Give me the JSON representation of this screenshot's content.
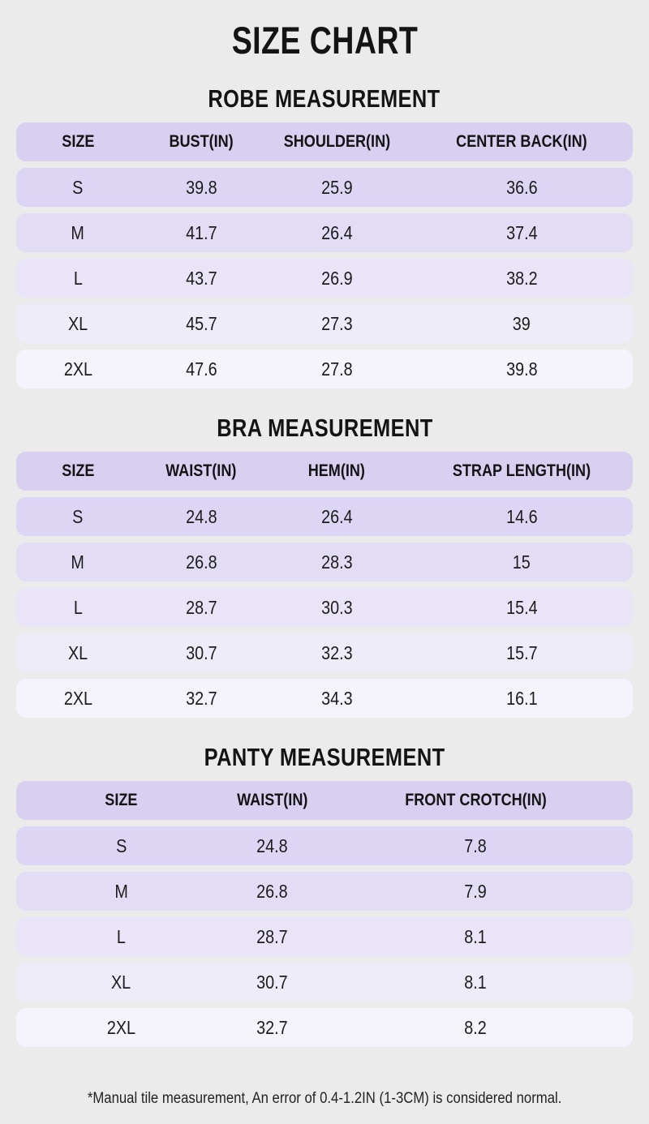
{
  "page": {
    "title": "SIZE CHART",
    "footnote": "*Manual tile measurement, An error of 0.4-1.2IN (1-3CM) is considered normal."
  },
  "colors": {
    "background": "#ebebeb",
    "header_row": "#d8cff1",
    "row_gradient": [
      "#dcd5f3",
      "#e2dcf5",
      "#e9e4f7",
      "#efecf9",
      "#f5f3fb"
    ],
    "text": "#1c1c1c"
  },
  "tables": [
    {
      "title": "ROBE MEASUREMENT",
      "headers": [
        "SIZE",
        "BUST(IN)",
        "SHOULDER(IN)",
        "CENTER BACK(IN)"
      ],
      "rows": [
        [
          "S",
          "39.8",
          "25.9",
          "36.6"
        ],
        [
          "M",
          "41.7",
          "26.4",
          "37.4"
        ],
        [
          "L",
          "43.7",
          "26.9",
          "38.2"
        ],
        [
          "XL",
          "45.7",
          "27.3",
          "39"
        ],
        [
          "2XL",
          "47.6",
          "27.8",
          "39.8"
        ]
      ]
    },
    {
      "title": "BRA MEASUREMENT",
      "headers": [
        "SIZE",
        "WAIST(IN)",
        "HEM(IN)",
        "STRAP LENGTH(IN)"
      ],
      "rows": [
        [
          "S",
          "24.8",
          "26.4",
          "14.6"
        ],
        [
          "M",
          "26.8",
          "28.3",
          "15"
        ],
        [
          "L",
          "28.7",
          "30.3",
          "15.4"
        ],
        [
          "XL",
          "30.7",
          "32.3",
          "15.7"
        ],
        [
          "2XL",
          "32.7",
          "34.3",
          "16.1"
        ]
      ]
    },
    {
      "title": "PANTY MEASUREMENT",
      "headers": [
        "SIZE",
        "WAIST(IN)",
        "FRONT CROTCH(IN)"
      ],
      "rows": [
        [
          "S",
          "24.8",
          "7.8"
        ],
        [
          "M",
          "26.8",
          "7.9"
        ],
        [
          "L",
          "28.7",
          "8.1"
        ],
        [
          "XL",
          "30.7",
          "8.1"
        ],
        [
          "2XL",
          "32.7",
          "8.2"
        ]
      ]
    }
  ]
}
